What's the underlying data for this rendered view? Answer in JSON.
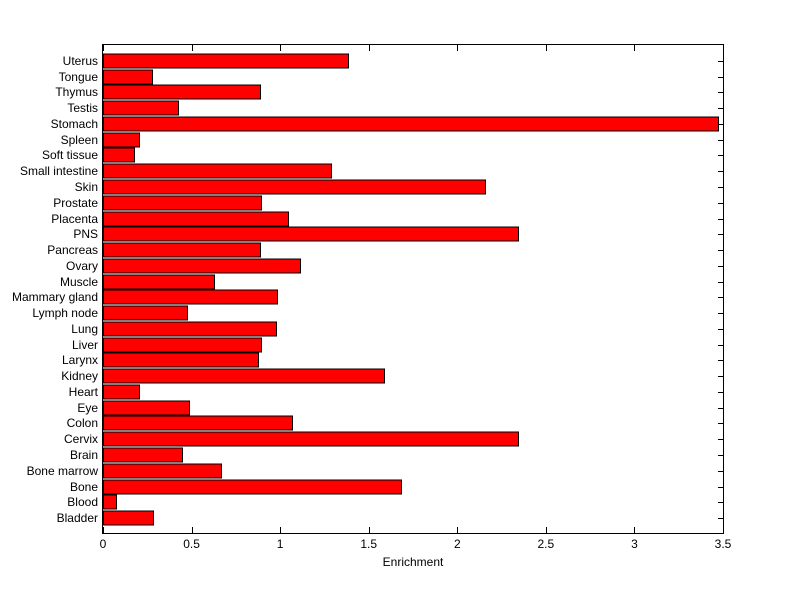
{
  "figure": {
    "background": "#ffffff"
  },
  "chart_data": {
    "type": "bar",
    "orientation": "horizontal",
    "title": "",
    "xlabel": "Enrichment",
    "ylabel": "",
    "xlim": [
      0,
      3.5
    ],
    "xticks": [
      0,
      0.5,
      1,
      1.5,
      2,
      2.5,
      3,
      3.5
    ],
    "xtick_labels": [
      "0",
      "0.5",
      "1",
      "1.5",
      "2",
      "2.5",
      "3",
      "3.5"
    ],
    "grid": false,
    "legend": false,
    "bar_color": "#ff0000",
    "bar_edge_color": "#000000",
    "axis_color": "#000000",
    "categories": [
      "Uterus",
      "Tongue",
      "Thymus",
      "Testis",
      "Stomach",
      "Spleen",
      "Soft tissue",
      "Small intestine",
      "Skin",
      "Prostate",
      "Placenta",
      "PNS",
      "Pancreas",
      "Ovary",
      "Muscle",
      "Mammary gland",
      "Lymph node",
      "Lung",
      "Liver",
      "Larynx",
      "Kidney",
      "Heart",
      "Eye",
      "Colon",
      "Cervix",
      "Brain",
      "Bone marrow",
      "Bone",
      "Blood",
      "Bladder"
    ],
    "values": [
      1.39,
      0.28,
      0.89,
      0.43,
      3.48,
      0.21,
      0.18,
      1.29,
      2.16,
      0.9,
      1.05,
      2.35,
      0.89,
      1.12,
      0.63,
      0.99,
      0.48,
      0.98,
      0.9,
      0.88,
      1.59,
      0.21,
      0.49,
      1.07,
      2.35,
      0.45,
      0.67,
      1.69,
      0.08,
      0.29
    ]
  }
}
